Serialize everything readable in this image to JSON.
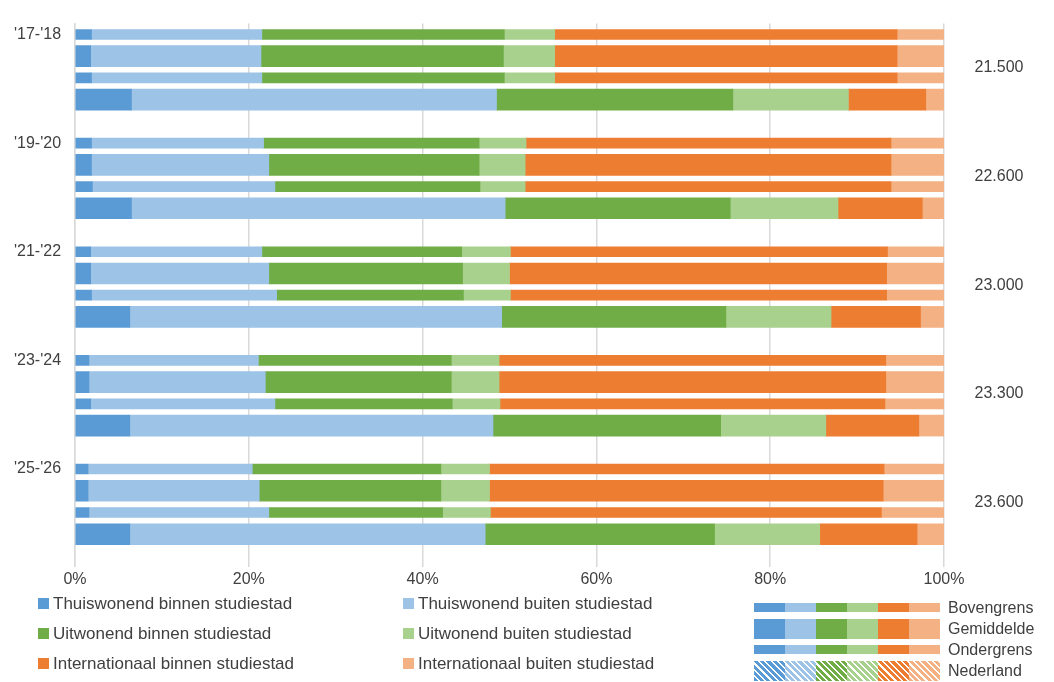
{
  "chart_data": {
    "type": "bar",
    "orientation": "horizontal",
    "stacked": true,
    "categories": [
      "'17-'18",
      null,
      null,
      null,
      null,
      "'19-'20",
      null,
      null,
      null,
      null,
      "'21-'22",
      null,
      null,
      null,
      null,
      "'23-'24",
      null,
      null,
      null,
      null,
      "'25-'26",
      null,
      null,
      null,
      null
    ],
    "series": [
      {
        "name": "Thuiswonend binnen studiestad",
        "color": "#5b9bd5",
        "values": [
          1.9,
          1.8,
          1.9,
          6.5,
          null,
          1.9,
          1.9,
          2.0,
          6.5,
          null,
          1.8,
          1.8,
          1.9,
          6.3,
          null,
          1.6,
          1.6,
          1.8,
          6.3,
          null,
          1.5,
          1.5,
          1.6,
          6.3,
          null
        ]
      },
      {
        "name": "Thuiswonend buiten studiestad",
        "color": "#9dc3e6",
        "values": [
          19.6,
          19.6,
          19.6,
          42.0,
          null,
          19.8,
          20.4,
          21.0,
          43.0,
          null,
          19.7,
          20.5,
          21.3,
          42.8,
          null,
          19.5,
          20.3,
          21.2,
          41.8,
          null,
          18.9,
          19.7,
          20.7,
          40.9,
          null
        ]
      },
      {
        "name": "Uitwonend binnen studiestad",
        "color": "#70ad47",
        "values": [
          27.9,
          27.9,
          27.9,
          27.2,
          null,
          24.8,
          24.2,
          23.6,
          25.9,
          null,
          23.0,
          22.3,
          21.5,
          25.8,
          null,
          22.2,
          21.4,
          20.4,
          26.2,
          null,
          21.7,
          20.9,
          20.0,
          26.4,
          null
        ]
      },
      {
        "name": "Uitwonend buiten studiestad",
        "color": "#a9d18e",
        "values": [
          5.8,
          5.9,
          5.8,
          13.3,
          null,
          5.4,
          5.3,
          5.2,
          12.4,
          null,
          5.6,
          5.4,
          5.4,
          12.1,
          null,
          5.5,
          5.5,
          5.5,
          12.1,
          null,
          5.6,
          5.6,
          5.5,
          12.1,
          null
        ]
      },
      {
        "name": "Internationaal binnen studiestad",
        "color": "#ed7d31",
        "values": [
          39.4,
          39.4,
          39.4,
          8.9,
          null,
          42.0,
          42.1,
          42.1,
          9.7,
          null,
          43.4,
          43.4,
          43.3,
          10.3,
          null,
          44.5,
          44.5,
          44.3,
          10.7,
          null,
          45.4,
          45.3,
          45.0,
          11.2,
          null
        ]
      },
      {
        "name": "Internationaal buiten studiestad",
        "color": "#f4b183",
        "values": [
          5.4,
          5.4,
          5.4,
          2.1,
          null,
          6.1,
          6.1,
          6.1,
          2.5,
          null,
          6.5,
          6.6,
          6.6,
          2.7,
          null,
          6.7,
          6.7,
          6.8,
          2.9,
          null,
          6.9,
          7.0,
          7.2,
          3.1,
          null
        ]
      }
    ],
    "xlim": [
      0,
      100
    ],
    "xticks": [
      {
        "value": 0,
        "label": "0%"
      },
      {
        "value": 20,
        "label": "20%"
      },
      {
        "value": 40,
        "label": "40%"
      },
      {
        "value": 60,
        "label": "60%"
      },
      {
        "value": 80,
        "label": "80%"
      },
      {
        "value": 100,
        "label": "100%"
      }
    ],
    "grid": "x",
    "legend": "bottom",
    "annotations": [
      "21.500",
      "22.600",
      "23.000",
      "23.300",
      "23.600",
      "Bovengrens",
      "Gemiddelde",
      "Ondergrens",
      "Nederland"
    ]
  }
}
